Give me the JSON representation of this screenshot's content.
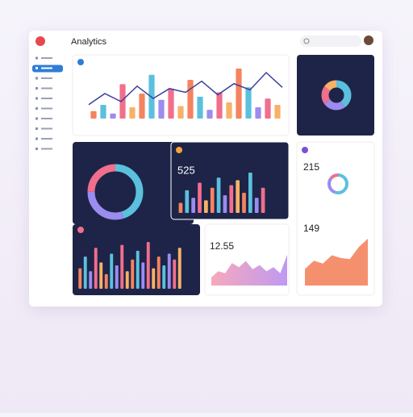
{
  "header": {
    "title": "Analytics"
  },
  "palette": [
    "#f4845f",
    "#5bc0de",
    "#9b8cf0",
    "#f06f8c",
    "#f7b267"
  ],
  "overview": {
    "bars": [
      12,
      22,
      8,
      55,
      18,
      40,
      70,
      30,
      48,
      20,
      62,
      35,
      14,
      42,
      26,
      80,
      50,
      18,
      32,
      22
    ],
    "line": [
      20,
      38,
      25,
      50,
      30,
      46,
      40,
      58,
      36,
      54,
      44,
      72,
      48
    ]
  },
  "traffic": {
    "segments": [
      40,
      25,
      20,
      15
    ]
  },
  "users": {
    "segments": [
      45,
      30,
      25
    ]
  },
  "sessions": {
    "value": "525",
    "bars": [
      20,
      45,
      30,
      60,
      25,
      50,
      70,
      35,
      55,
      65,
      40,
      80,
      30,
      50
    ]
  },
  "conversion": {
    "value": "215",
    "segments": [
      55,
      30,
      15
    ]
  },
  "revenue": {
    "value": "149",
    "area": [
      30,
      45,
      40,
      55,
      50,
      48,
      70,
      85
    ]
  },
  "channels": {
    "bars": [
      35,
      55,
      30,
      70,
      45,
      25,
      60,
      40,
      75,
      30,
      50,
      65,
      45,
      80,
      35,
      55,
      40,
      60,
      50,
      70
    ]
  },
  "growth": {
    "value": "12.55",
    "area": [
      20,
      35,
      30,
      55,
      45,
      60,
      40,
      50,
      35,
      45,
      30,
      75
    ]
  }
}
